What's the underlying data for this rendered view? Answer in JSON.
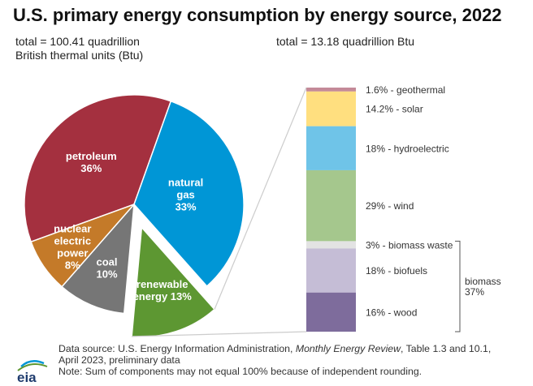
{
  "title": "U.S. primary energy consumption by energy source, 2022",
  "total_left": [
    "total = 100.41 quadrillion",
    "British thermal units (Btu)"
  ],
  "total_right": "total = 13.18 quadrillion Btu",
  "chart_data": [
    {
      "type": "pie",
      "labels": [
        "petroleum",
        "natural gas",
        "renewable energy",
        "coal",
        "nuclear electric power"
      ],
      "values": [
        36,
        33,
        13,
        10,
        8
      ],
      "label_lines": [
        [
          "petroleum",
          "36%"
        ],
        [
          "natural",
          "gas",
          "33%"
        ],
        [
          "renewable",
          "energy 13%"
        ],
        [
          "coal",
          "10%"
        ],
        [
          "nuclear",
          "electric",
          "power",
          "8%"
        ]
      ],
      "colors": [
        "#a4303f",
        "#0096d6",
        "#5d9732",
        "#767676",
        "#c47a29"
      ],
      "exploded": "renewable energy"
    },
    {
      "type": "bar",
      "stacked": true,
      "categories": [
        "geothermal",
        "solar",
        "hydroelectric",
        "wind",
        "biomass waste",
        "biofuels",
        "wood"
      ],
      "values": [
        1.6,
        14.2,
        18,
        29,
        3,
        18,
        16
      ],
      "labels": [
        "1.6% - geothermal",
        "14.2% - solar",
        "18% - hydroelectric",
        "29% - wind",
        "3% - biomass waste",
        "18% - biofuels",
        "16% - wood"
      ],
      "colors": [
        "#c48a98",
        "#ffdf7f",
        "#6fc4e8",
        "#a5c78d",
        "#e3e3e3",
        "#c5bdd6",
        "#7e6c9c"
      ],
      "group": {
        "label": [
          "biomass",
          "37%"
        ],
        "members": [
          "biomass waste",
          "biofuels",
          "wood"
        ]
      }
    }
  ],
  "footer": {
    "source_pre": "Data source: U.S. Energy Information Administration, ",
    "source_italic": "Monthly Energy Review",
    "source_post": ", Table 1.3 and 10.1,",
    "source_line2": "April 2023, preliminary data",
    "note": "Note: Sum of components may not equal 100% because of independent rounding."
  },
  "logo": "eia"
}
